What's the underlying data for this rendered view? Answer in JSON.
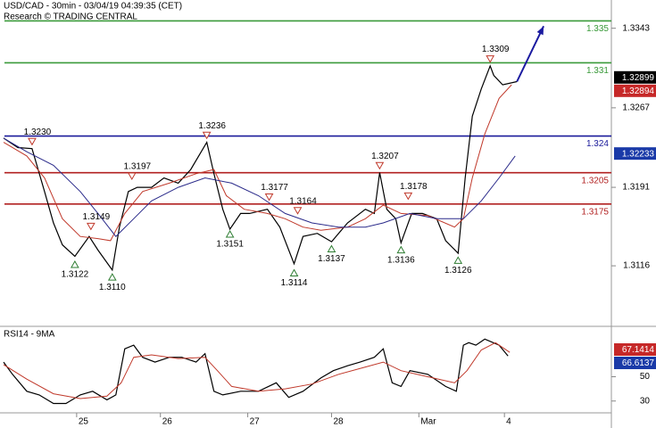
{
  "chart_data": [
    {
      "type": "line",
      "title": "USD/CAD - 30min - 03/04/19 04:39:35 (CET)",
      "subtitle": "Research © TRADING CENTRAL",
      "xlim": [
        0,
        343
      ],
      "ylim": [
        1.3059,
        1.337
      ],
      "yticks": [
        1.3343,
        1.3267,
        1.3191,
        1.3116
      ],
      "series": [
        {
          "color": "#000000",
          "x": [
            2,
            10,
            18,
            25,
            30,
            35,
            42,
            50,
            55,
            63,
            67,
            72,
            77,
            85,
            92,
            100,
            107,
            116,
            120,
            125,
            129,
            135,
            140,
            150,
            157,
            165,
            170,
            178,
            186,
            195,
            205,
            210,
            213,
            217,
            222,
            225,
            231,
            237,
            245,
            250,
            257,
            261,
            265,
            270,
            275,
            277,
            282,
            290
          ],
          "values": [
            1.3238,
            1.3229,
            1.3228,
            1.3187,
            1.3157,
            1.3136,
            1.3125,
            1.3144,
            1.3131,
            1.3112,
            1.3153,
            1.3187,
            1.3191,
            1.3191,
            1.32,
            1.3195,
            1.3208,
            1.3234,
            1.3204,
            1.317,
            1.3151,
            1.3166,
            1.3166,
            1.317,
            1.3153,
            1.3118,
            1.3144,
            1.3147,
            1.3139,
            1.3157,
            1.317,
            1.3166,
            1.3205,
            1.317,
            1.3161,
            1.3138,
            1.3166,
            1.3166,
            1.3161,
            1.314,
            1.3128,
            1.32,
            1.3259,
            1.3285,
            1.3307,
            1.3298,
            1.3289,
            1.3292
          ]
        },
        {
          "color": "#c0392b",
          "x": [
            2,
            15,
            25,
            35,
            45,
            55,
            62,
            70,
            80,
            95,
            110,
            120,
            127,
            137,
            150,
            160,
            170,
            180,
            195,
            205,
            215,
            225,
            240,
            255,
            260,
            265,
            272,
            280,
            287
          ],
          "values": [
            1.3234,
            1.3221,
            1.32,
            1.3161,
            1.3144,
            1.3142,
            1.314,
            1.3166,
            1.3187,
            1.3195,
            1.3204,
            1.3208,
            1.3183,
            1.317,
            1.3166,
            1.3161,
            1.3153,
            1.315,
            1.3153,
            1.3161,
            1.3174,
            1.3166,
            1.3164,
            1.3153,
            1.3161,
            1.32,
            1.3242,
            1.3276,
            1.3289
          ]
        },
        {
          "color": "#2a2a8a",
          "x": [
            2,
            15,
            30,
            45,
            55,
            65,
            75,
            85,
            100,
            115,
            130,
            145,
            160,
            175,
            190,
            205,
            215,
            230,
            245,
            260,
            270,
            280,
            289
          ],
          "values": [
            1.3238,
            1.3225,
            1.3212,
            1.3187,
            1.3166,
            1.3144,
            1.3161,
            1.3178,
            1.3191,
            1.32,
            1.3195,
            1.3183,
            1.3166,
            1.3157,
            1.3153,
            1.3153,
            1.3157,
            1.3166,
            1.3161,
            1.3161,
            1.3178,
            1.32,
            1.3221
          ]
        },
        {
          "color": "#1a1aa0",
          "arrow": true,
          "x": [
            290,
            305
          ],
          "values": [
            1.3292,
            1.3345
          ]
        }
      ],
      "levels": [
        {
          "value": 1.335,
          "color": "#3a9a3a"
        },
        {
          "value": 1.331,
          "color": "#3a9a3a"
        },
        {
          "value": 1.324,
          "color": "#1a1a9a"
        },
        {
          "value": 1.3205,
          "color": "#b22222"
        },
        {
          "value": 1.3175,
          "color": "#b22222"
        }
      ],
      "annotations": [
        {
          "x": 18,
          "value": 1.323,
          "label": "1.3230",
          "dir": "high"
        },
        {
          "x": 42,
          "value": 1.3122,
          "label": "1.3122",
          "dir": "low"
        },
        {
          "x": 51,
          "value": 1.3149,
          "label": "1.3149",
          "dir": "high"
        },
        {
          "x": 63,
          "value": 1.311,
          "label": "1.3110",
          "dir": "low"
        },
        {
          "x": 74,
          "value": 1.3197,
          "label": "1.3197",
          "dir": "high"
        },
        {
          "x": 116,
          "value": 1.3236,
          "label": "1.3236",
          "dir": "high"
        },
        {
          "x": 129,
          "value": 1.3151,
          "label": "1.3151",
          "dir": "low"
        },
        {
          "x": 151,
          "value": 1.3177,
          "label": "1.3177",
          "dir": "high"
        },
        {
          "x": 165,
          "value": 1.3114,
          "label": "1.3114",
          "dir": "low"
        },
        {
          "x": 167,
          "value": 1.3164,
          "label": "1.3164",
          "dir": "high"
        },
        {
          "x": 186,
          "value": 1.3137,
          "label": "1.3137",
          "dir": "low"
        },
        {
          "x": 213,
          "value": 1.3207,
          "label": "1.3207",
          "dir": "high"
        },
        {
          "x": 225,
          "value": 1.3136,
          "label": "1.3136",
          "dir": "low"
        },
        {
          "x": 229,
          "value": 1.3178,
          "label": "1.3178",
          "dir": "high"
        },
        {
          "x": 257,
          "value": 1.3126,
          "label": "1.3126",
          "dir": "low"
        },
        {
          "x": 275,
          "value": 1.3309,
          "label": "1.3309",
          "dir": "high"
        }
      ],
      "price_markers": [
        {
          "value": 1.32899,
          "color": "#000000"
        },
        {
          "value": 1.32894,
          "color": "#c62828"
        },
        {
          "value": 1.32233,
          "color": "#1a3aa8"
        }
      ]
    },
    {
      "type": "line",
      "title": "RSI14 - 9MA",
      "xlim": [
        0,
        343
      ],
      "ylim": [
        21,
        90
      ],
      "yticks": [
        50,
        30
      ],
      "xticks": [
        {
          "value": 43,
          "label": "25"
        },
        {
          "value": 90,
          "label": "26"
        },
        {
          "value": 139,
          "label": "27"
        },
        {
          "value": 186,
          "label": "28"
        },
        {
          "value": 235,
          "label": "Mar"
        },
        {
          "value": 283,
          "label": "4"
        }
      ],
      "series": [
        {
          "color": "#000000",
          "x": [
            2,
            7,
            15,
            22,
            30,
            37,
            45,
            52,
            60,
            65,
            70,
            75,
            80,
            87,
            95,
            102,
            110,
            115,
            120,
            125,
            135,
            145,
            155,
            162,
            170,
            180,
            187,
            195,
            202,
            210,
            215,
            220,
            225,
            230,
            240,
            250,
            256,
            260,
            263,
            267,
            272,
            280,
            285
          ],
          "values": [
            62,
            52,
            38,
            35,
            28,
            28,
            35,
            38,
            31,
            35,
            73,
            76,
            66,
            62,
            66,
            66,
            62,
            69,
            38,
            35,
            38,
            38,
            45,
            33,
            38,
            49,
            55,
            59,
            62,
            66,
            73,
            45,
            42,
            55,
            52,
            42,
            38,
            76,
            78,
            76,
            81,
            76,
            67
          ]
        },
        {
          "color": "#c0392b",
          "x": [
            2,
            15,
            30,
            45,
            60,
            68,
            75,
            85,
            100,
            115,
            122,
            130,
            145,
            160,
            175,
            190,
            205,
            215,
            225,
            240,
            255,
            262,
            270,
            278,
            286
          ],
          "values": [
            60,
            48,
            36,
            32,
            34,
            45,
            66,
            68,
            65,
            66,
            55,
            42,
            38,
            40,
            44,
            52,
            58,
            62,
            55,
            50,
            45,
            55,
            72,
            78,
            70
          ]
        }
      ],
      "markers": [
        {
          "value": 67.1414,
          "color": "#c62828"
        },
        {
          "value": 66.6137,
          "color": "#1a3aa8"
        }
      ]
    }
  ]
}
